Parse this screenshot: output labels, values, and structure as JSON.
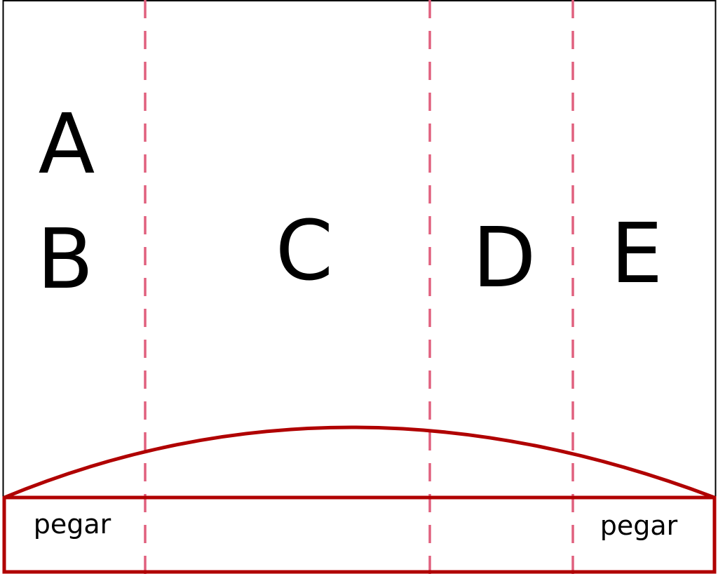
{
  "colors": {
    "outline": "#000000",
    "fold_line": "#e0607e",
    "glue_outline": "#b00000",
    "background": "#ffffff",
    "text": "#000000"
  },
  "panels": {
    "a": "A",
    "b": "B",
    "c": "C",
    "d": "D",
    "e": "E"
  },
  "glue_tabs": {
    "left": "pegar",
    "right": "pegar"
  }
}
